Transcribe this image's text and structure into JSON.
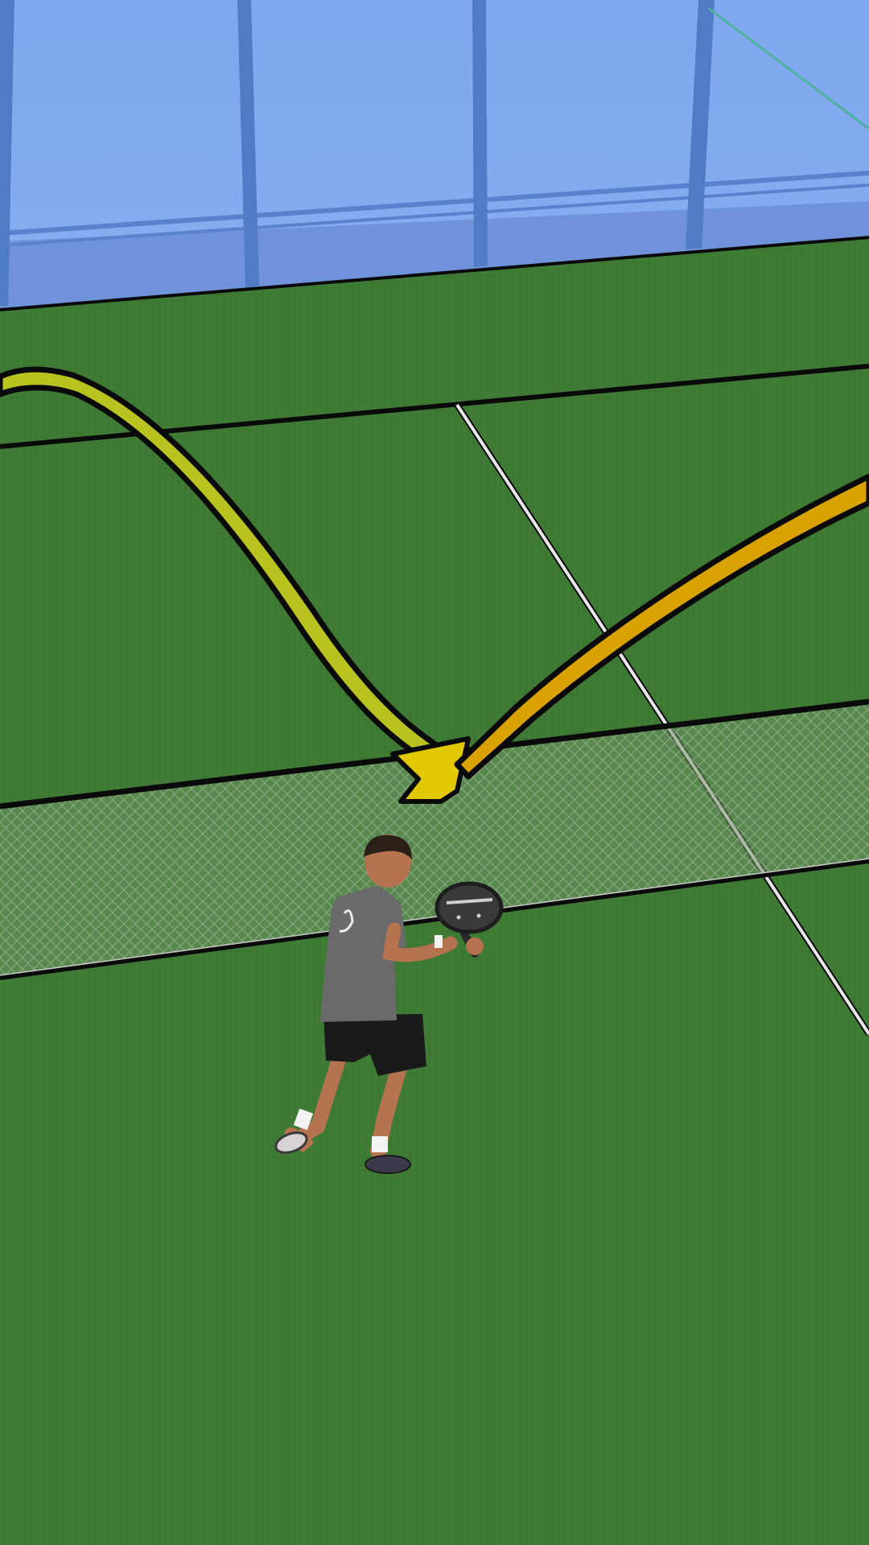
{
  "scene": {
    "kind": "padel court diagram",
    "colors": {
      "sky_glass": "#7fa8ee",
      "glass_base": "#6e8fd8",
      "glass_post": "#4f7cc4",
      "grass": "#3f7a35",
      "grass_light": "#4a8a3c",
      "court_line_dark": "#0a0a0a",
      "court_line_white": "#e8e8e8",
      "mesh_net": "#9bb596",
      "trajectory_incoming": "#b9c320",
      "trajectory_outgoing": "#d9a200",
      "bounce_marker": "#e2c800",
      "player_shirt": "#6a6a6a",
      "player_shorts": "#1a1a1a",
      "player_skin": "#b5734f"
    },
    "icons": {
      "trajectory_in": "arc-arrow-icon",
      "trajectory_out": "diagonal-arrow-icon",
      "player": "padel-player-figure",
      "racket": "padel-racket-icon"
    }
  }
}
